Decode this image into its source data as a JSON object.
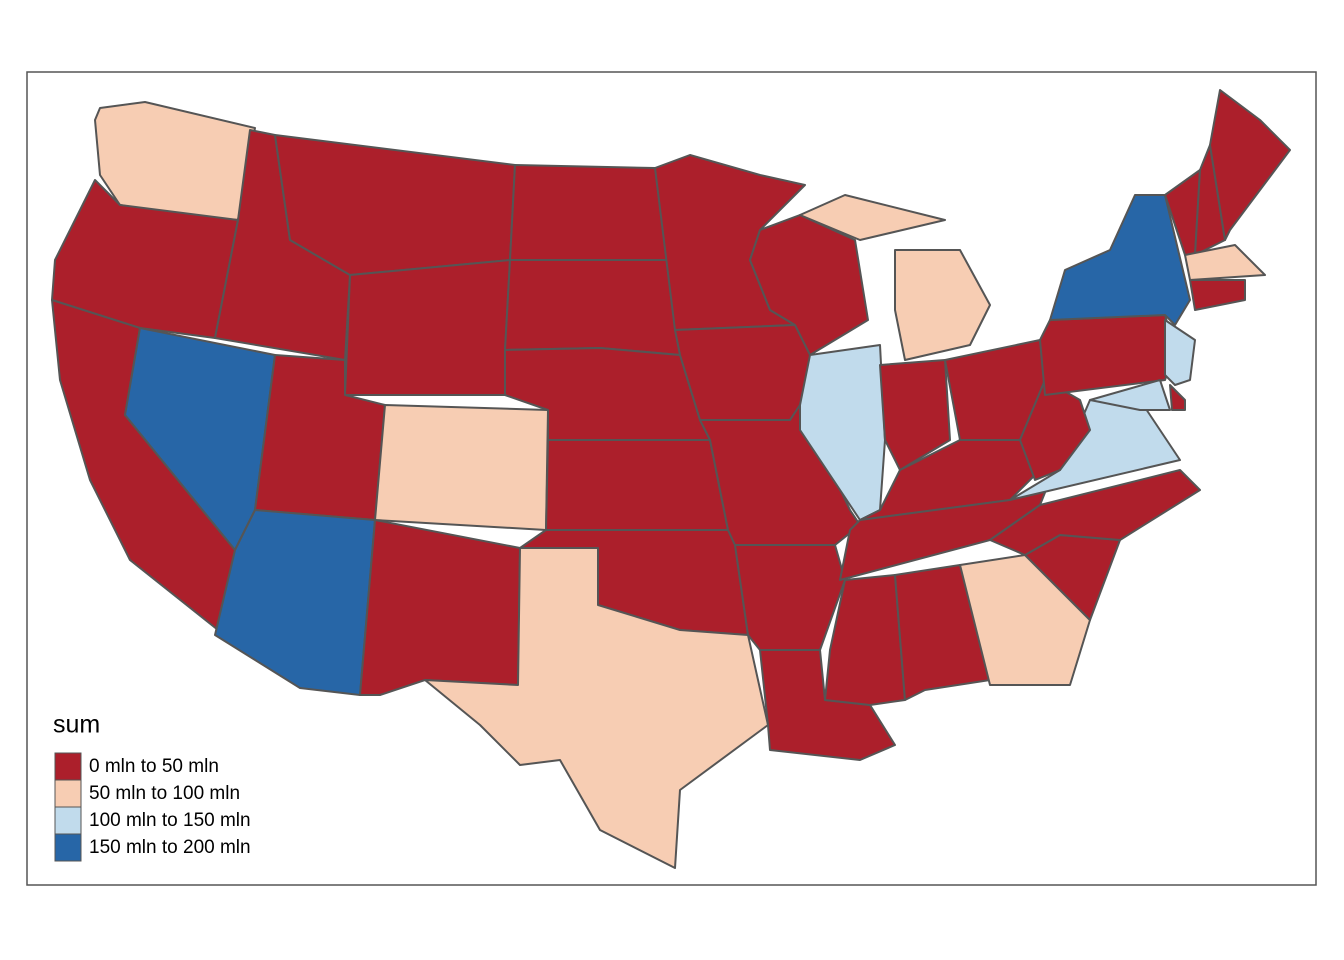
{
  "legend": {
    "title": "sum",
    "items": [
      {
        "label": "0 mln to 50 mln",
        "color": "#ac1f2b"
      },
      {
        "label": "50 mln to 100 mln",
        "color": "#f7cdb3"
      },
      {
        "label": "100 mln to 150 mln",
        "color": "#c1dbec"
      },
      {
        "label": "150 mln to 200 mln",
        "color": "#2766a7"
      }
    ]
  }
}
